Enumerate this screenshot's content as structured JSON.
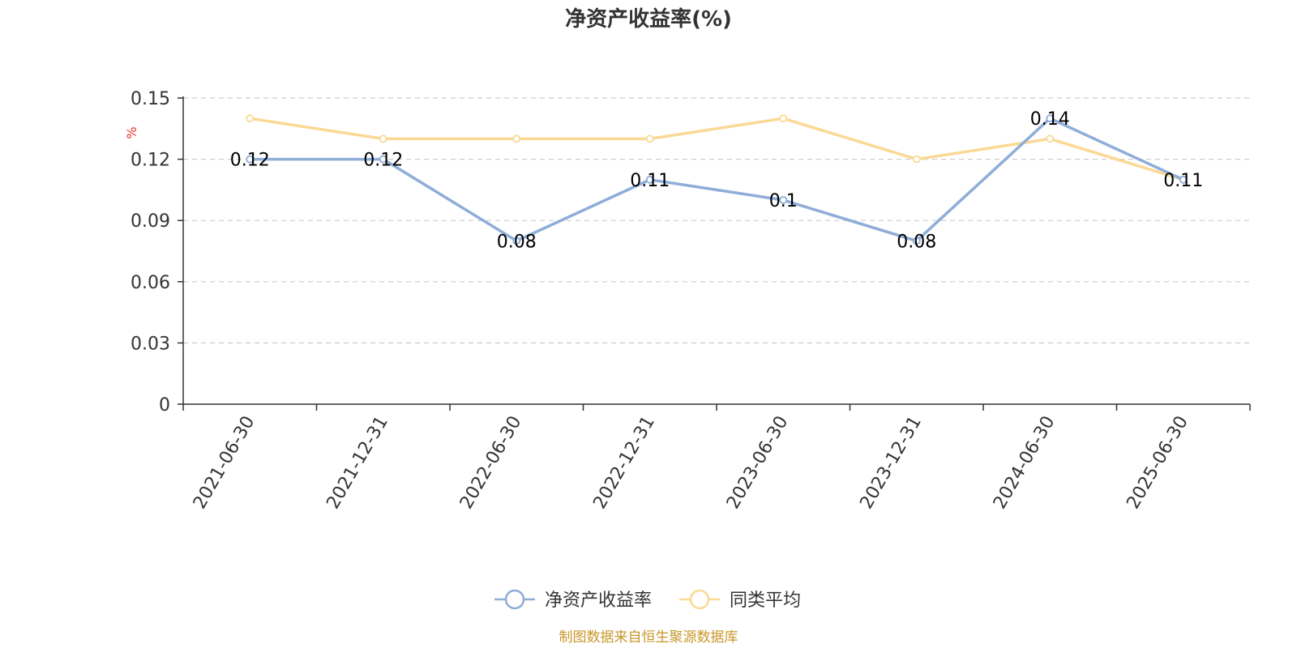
{
  "colors": {
    "series_main": "#8eadd8",
    "series_avg": "#fbd995",
    "axis": "#333333",
    "grid": "#cccccc",
    "unit": "#e8302a",
    "source": "#c8972b"
  },
  "chart_data": {
    "type": "line",
    "title": "净资产收益率(%)",
    "ylabel": "%",
    "xlabel": "",
    "categories": [
      "2021-06-30",
      "2021-12-31",
      "2022-06-30",
      "2022-12-31",
      "2023-06-30",
      "2023-12-31",
      "2024-06-30",
      "2025-06-30"
    ],
    "ylim": [
      0,
      0.15
    ],
    "yticks": [
      "0",
      "0.03",
      "0.06",
      "0.09",
      "0.12",
      "0.15"
    ],
    "grid": true,
    "legend_position": "bottom",
    "series": [
      {
        "name": "净资产收益率",
        "values": [
          0.12,
          0.12,
          0.08,
          0.11,
          0.1,
          0.08,
          0.14,
          0.11
        ],
        "labels": [
          "0.12",
          "0.12",
          "0.08",
          "0.11",
          "0.1",
          "0.08",
          "0.14",
          "0.11"
        ]
      },
      {
        "name": "同类平均",
        "values": [
          0.14,
          0.13,
          0.13,
          0.13,
          0.14,
          0.12,
          0.13,
          0.11
        ]
      }
    ]
  },
  "footer": {
    "source": "制图数据来自恒生聚源数据库"
  }
}
